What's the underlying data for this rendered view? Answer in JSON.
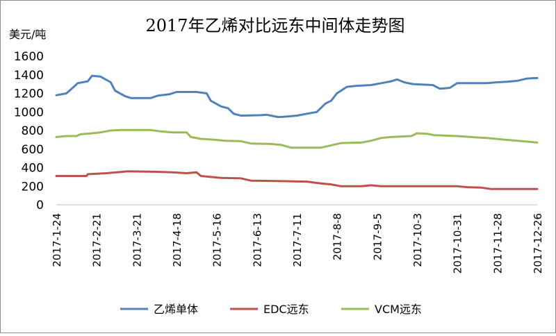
{
  "chart_data": {
    "type": "line",
    "title": "2017年乙烯对比远东中间体走势图",
    "ylabel": "美元/吨",
    "ylim": [
      0,
      1600
    ],
    "yticks": [
      "0",
      "200",
      "400",
      "600",
      "800",
      "1000",
      "1200",
      "1400",
      "1600"
    ],
    "x_tick_labels": [
      "2017-1-24",
      "2017-2-21",
      "2017-3-21",
      "2017-4-18",
      "2017-5-16",
      "2017-6-13",
      "2017-7-11",
      "2017-8-8",
      "2017-9-5",
      "2017-10-3",
      "2017-10-31",
      "2017-11-28",
      "2017-12-26"
    ],
    "grid": false,
    "legend_position": "bottom",
    "series": [
      {
        "name": "乙烯单体",
        "color": "#4f81bd",
        "points": [
          [
            "2017-1-24",
            1180
          ],
          [
            "2017-1-31",
            1200
          ],
          [
            "2017-2-3",
            1240
          ],
          [
            "2017-2-8",
            1310
          ],
          [
            "2017-2-15",
            1330
          ],
          [
            "2017-2-18",
            1390
          ],
          [
            "2017-2-24",
            1380
          ],
          [
            "2017-3-3",
            1320
          ],
          [
            "2017-3-6",
            1230
          ],
          [
            "2017-3-13",
            1170
          ],
          [
            "2017-3-17",
            1150
          ],
          [
            "2017-3-31",
            1150
          ],
          [
            "2017-4-5",
            1175
          ],
          [
            "2017-4-13",
            1190
          ],
          [
            "2017-4-18",
            1215
          ],
          [
            "2017-5-2",
            1215
          ],
          [
            "2017-5-9",
            1200
          ],
          [
            "2017-5-12",
            1120
          ],
          [
            "2017-5-19",
            1060
          ],
          [
            "2017-5-24",
            1040
          ],
          [
            "2017-5-28",
            980
          ],
          [
            "2017-6-2",
            960
          ],
          [
            "2017-6-16",
            965
          ],
          [
            "2017-6-20",
            970
          ],
          [
            "2017-6-28",
            945
          ],
          [
            "2017-7-4",
            950
          ],
          [
            "2017-7-11",
            960
          ],
          [
            "2017-7-16",
            975
          ],
          [
            "2017-7-25",
            1000
          ],
          [
            "2017-7-31",
            1090
          ],
          [
            "2017-8-4",
            1120
          ],
          [
            "2017-8-8",
            1200
          ],
          [
            "2017-8-15",
            1270
          ],
          [
            "2017-8-21",
            1280
          ],
          [
            "2017-9-1",
            1290
          ],
          [
            "2017-9-8",
            1310
          ],
          [
            "2017-9-15",
            1330
          ],
          [
            "2017-9-19",
            1350
          ],
          [
            "2017-9-24",
            1320
          ],
          [
            "2017-9-30",
            1300
          ],
          [
            "2017-10-14",
            1290
          ],
          [
            "2017-10-19",
            1250
          ],
          [
            "2017-10-26",
            1260
          ],
          [
            "2017-10-31",
            1310
          ],
          [
            "2017-11-7",
            1310
          ],
          [
            "2017-11-21",
            1310
          ],
          [
            "2017-11-28",
            1320
          ],
          [
            "2017-12-5",
            1325
          ],
          [
            "2017-12-12",
            1335
          ],
          [
            "2017-12-19",
            1360
          ],
          [
            "2017-12-26",
            1365
          ]
        ]
      },
      {
        "name": "EDC远东",
        "color": "#c0504d",
        "points": [
          [
            "2017-1-24",
            310
          ],
          [
            "2017-2-14",
            310
          ],
          [
            "2017-2-15",
            330
          ],
          [
            "2017-2-28",
            340
          ],
          [
            "2017-3-7",
            350
          ],
          [
            "2017-3-15",
            360
          ],
          [
            "2017-4-5",
            355
          ],
          [
            "2017-4-15",
            350
          ],
          [
            "2017-4-25",
            340
          ],
          [
            "2017-5-2",
            350
          ],
          [
            "2017-5-5",
            310
          ],
          [
            "2017-5-19",
            290
          ],
          [
            "2017-6-2",
            285
          ],
          [
            "2017-6-9",
            260
          ],
          [
            "2017-6-30",
            255
          ],
          [
            "2017-7-18",
            250
          ],
          [
            "2017-7-28",
            230
          ],
          [
            "2017-8-4",
            220
          ],
          [
            "2017-8-11",
            200
          ],
          [
            "2017-8-25",
            200
          ],
          [
            "2017-9-1",
            210
          ],
          [
            "2017-9-8",
            200
          ],
          [
            "2017-10-31",
            200
          ],
          [
            "2017-11-7",
            190
          ],
          [
            "2017-11-17",
            185
          ],
          [
            "2017-11-24",
            170
          ],
          [
            "2017-12-26",
            170
          ]
        ]
      },
      {
        "name": "VCM远东",
        "color": "#9bbb59",
        "points": [
          [
            "2017-1-24",
            730
          ],
          [
            "2017-1-31",
            740
          ],
          [
            "2017-2-7",
            740
          ],
          [
            "2017-2-10",
            760
          ],
          [
            "2017-2-18",
            770
          ],
          [
            "2017-2-24",
            780
          ],
          [
            "2017-3-3",
            800
          ],
          [
            "2017-3-10",
            805
          ],
          [
            "2017-3-31",
            805
          ],
          [
            "2017-4-7",
            790
          ],
          [
            "2017-4-15",
            780
          ],
          [
            "2017-4-25",
            780
          ],
          [
            "2017-4-28",
            730
          ],
          [
            "2017-5-5",
            710
          ],
          [
            "2017-5-15",
            700
          ],
          [
            "2017-5-22",
            690
          ],
          [
            "2017-6-2",
            685
          ],
          [
            "2017-6-9",
            660
          ],
          [
            "2017-6-23",
            655
          ],
          [
            "2017-6-30",
            645
          ],
          [
            "2017-7-7",
            615
          ],
          [
            "2017-7-28",
            615
          ],
          [
            "2017-8-4",
            640
          ],
          [
            "2017-8-11",
            665
          ],
          [
            "2017-8-25",
            670
          ],
          [
            "2017-9-1",
            690
          ],
          [
            "2017-9-8",
            720
          ],
          [
            "2017-9-15",
            730
          ],
          [
            "2017-9-29",
            740
          ],
          [
            "2017-10-3",
            770
          ],
          [
            "2017-10-10",
            765
          ],
          [
            "2017-10-15",
            750
          ],
          [
            "2017-10-31",
            740
          ],
          [
            "2017-11-14",
            725
          ],
          [
            "2017-11-21",
            720
          ],
          [
            "2017-12-1",
            705
          ],
          [
            "2017-12-12",
            690
          ],
          [
            "2017-12-20",
            680
          ],
          [
            "2017-12-26",
            670
          ]
        ]
      }
    ]
  }
}
